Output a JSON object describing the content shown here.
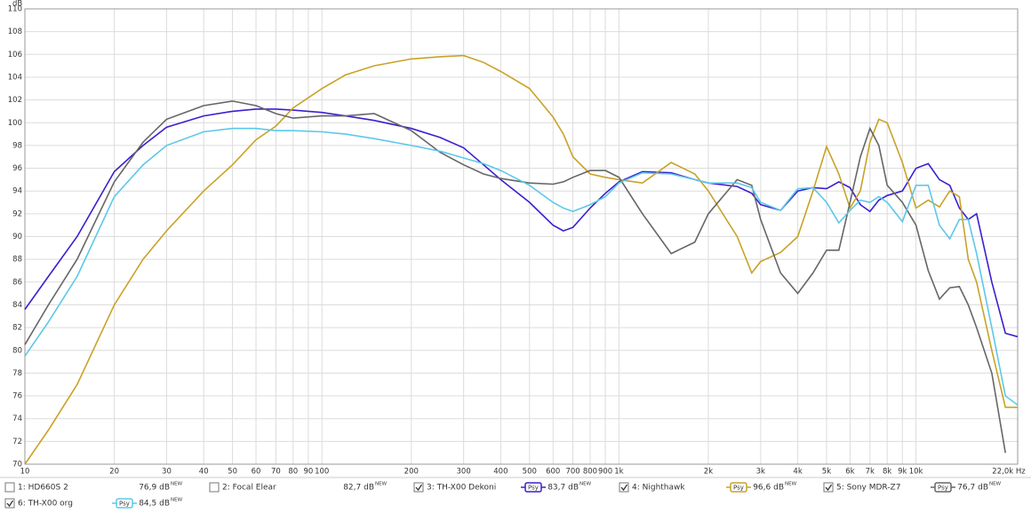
{
  "chart_data": {
    "type": "line",
    "xscale": "log",
    "y_label": "dB",
    "grid": true,
    "xlim": [
      10,
      22000
    ],
    "ylim": [
      70,
      110
    ],
    "yticks": [
      70,
      72,
      74,
      76,
      78,
      80,
      82,
      84,
      86,
      88,
      90,
      92,
      94,
      96,
      98,
      100,
      102,
      104,
      106,
      108,
      110
    ],
    "xticks": [
      10,
      20,
      30,
      40,
      50,
      60,
      70,
      80,
      90,
      100,
      200,
      300,
      400,
      500,
      600,
      700,
      800,
      900,
      {
        "value": 1000,
        "label": "1k"
      },
      {
        "value": 2000,
        "label": "2k"
      },
      {
        "value": 3000,
        "label": "3k"
      },
      {
        "value": 4000,
        "label": "4k"
      },
      {
        "value": 5000,
        "label": "5k"
      },
      {
        "value": 6000,
        "label": "6k"
      },
      {
        "value": 7000,
        "label": "7k"
      },
      {
        "value": 8000,
        "label": "8k"
      },
      {
        "value": 9000,
        "label": "9k"
      },
      {
        "value": 10000,
        "label": "10k"
      },
      {
        "value": 22000,
        "label": "22,0k Hz"
      }
    ],
    "x": [
      10,
      12,
      15,
      20,
      25,
      30,
      40,
      50,
      60,
      70,
      80,
      100,
      120,
      150,
      200,
      250,
      300,
      350,
      400,
      500,
      600,
      650,
      700,
      800,
      900,
      1000,
      1200,
      1500,
      1800,
      2000,
      2500,
      2800,
      3000,
      3500,
      4000,
      4500,
      5000,
      5500,
      6000,
      6500,
      7000,
      7500,
      8000,
      9000,
      10000,
      11000,
      12000,
      13000,
      14000,
      15000,
      16000,
      18000,
      20000,
      22000
    ],
    "psy_label": "Psy",
    "badge": "NEW",
    "series": [
      {
        "name": "1: HD660S 2",
        "color": "#222222",
        "checked": false,
        "psy": false,
        "level": "76,9 dB"
      },
      {
        "name": "2: Focal Elear",
        "color": "#999999",
        "checked": false,
        "psy": false,
        "level": "82,7 dB"
      },
      {
        "name": "3: TH-X00 Dekoni",
        "color": "#3a1fd0",
        "checked": true,
        "psy": true,
        "level": "83,7 dB",
        "values": [
          83.6,
          86.5,
          90,
          95.7,
          98,
          99.6,
          100.6,
          101,
          101.2,
          101.2,
          101.1,
          100.9,
          100.6,
          100.2,
          99.5,
          98.7,
          97.8,
          96.3,
          95,
          93,
          91,
          90.5,
          90.8,
          92.5,
          93.8,
          94.8,
          95.7,
          95.6,
          95,
          94.7,
          94.4,
          93.8,
          92.8,
          92.3,
          94,
          94.3,
          94.2,
          94.8,
          94.3,
          92.8,
          92.2,
          93.2,
          93.6,
          94,
          96,
          96.4,
          95,
          94.5,
          92.5,
          91.5,
          92,
          86,
          81.5,
          81.2
        ]
      },
      {
        "name": "4: Nighthawk",
        "color": "#c9a227",
        "checked": true,
        "psy": true,
        "level": "96,6 dB",
        "values": [
          70,
          73,
          77,
          84,
          88,
          90.5,
          94,
          96.3,
          98.5,
          99.7,
          101.3,
          103,
          104.2,
          105,
          105.6,
          105.8,
          105.9,
          105.3,
          104.5,
          103,
          100.5,
          99,
          97,
          95.5,
          95.2,
          95,
          94.7,
          96.5,
          95.5,
          94,
          90,
          86.8,
          87.8,
          88.6,
          90,
          94,
          97.9,
          95.5,
          92.5,
          94,
          98.3,
          100.3,
          100,
          96.5,
          92.5,
          93.2,
          92.6,
          94,
          93.5,
          88,
          86,
          80,
          75,
          75
        ]
      },
      {
        "name": "5: Sony MDR-Z7",
        "color": "#666666",
        "checked": true,
        "psy": true,
        "level": "76,7 dB",
        "values": [
          80.5,
          84,
          88,
          94.8,
          98.3,
          100.3,
          101.5,
          101.9,
          101.5,
          100.8,
          100.4,
          100.6,
          100.6,
          100.8,
          99.3,
          97.4,
          96.3,
          95.5,
          95.1,
          94.7,
          94.6,
          94.8,
          95.2,
          95.8,
          95.8,
          95.2,
          92,
          88.5,
          89.5,
          92,
          95,
          94.5,
          91.5,
          86.8,
          85,
          86.8,
          88.8,
          88.8,
          93,
          97,
          99.5,
          98,
          94.5,
          93,
          91,
          87,
          84.5,
          85.5,
          85.6,
          84,
          82,
          78,
          71,
          null
        ]
      },
      {
        "name": "6: TH-X00 org",
        "color": "#5bc8ea",
        "checked": true,
        "psy": true,
        "level": "84,5 dB",
        "values": [
          79.5,
          82.5,
          86.5,
          93.5,
          96.3,
          98,
          99.2,
          99.5,
          99.5,
          99.3,
          99.3,
          99.2,
          99,
          98.6,
          98,
          97.5,
          96.9,
          96.4,
          95.8,
          94.5,
          93,
          92.5,
          92.2,
          92.8,
          93.5,
          94.7,
          95.6,
          95.5,
          95,
          94.7,
          94.7,
          94.3,
          93,
          92.3,
          94.2,
          94.3,
          93,
          91.2,
          92.3,
          93.2,
          93,
          93.5,
          93,
          91.3,
          94.5,
          94.5,
          91,
          89.8,
          91.5,
          91.5,
          88.5,
          82,
          76,
          75.2
        ]
      }
    ]
  }
}
